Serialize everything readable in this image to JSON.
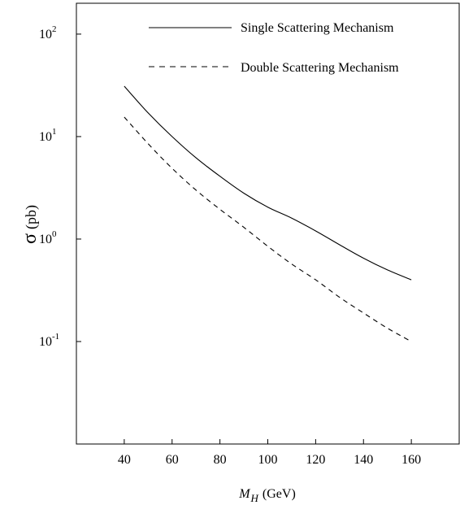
{
  "chart_data": {
    "type": "line",
    "xlabel": {
      "main": "M",
      "subscript": "H",
      "unit": "(GeV)"
    },
    "ylabel": {
      "symbol": "σ",
      "unit": "(pb)"
    },
    "yscale": "log",
    "xlim": [
      20,
      180
    ],
    "ylim": [
      0.01,
      200
    ],
    "grid": false,
    "legend_position": "top-right",
    "x_ticks": [
      40,
      60,
      80,
      100,
      120,
      140,
      160
    ],
    "x_tick_labels": [
      "40",
      "60",
      "80",
      "100",
      "120",
      "140",
      "160"
    ],
    "y_ticks": [
      {
        "value": 0.1,
        "base": "10",
        "exp": "-1"
      },
      {
        "value": 1,
        "base": "10",
        "exp": "0"
      },
      {
        "value": 10,
        "base": "10",
        "exp": "1"
      },
      {
        "value": 100,
        "base": "10",
        "exp": "2"
      }
    ],
    "series": [
      {
        "name": "Single Scattering Mechanism",
        "style": "solid",
        "x": [
          40,
          50,
          60,
          70,
          80,
          90,
          100,
          110,
          120,
          130,
          140,
          150,
          160
        ],
        "y": [
          31,
          17,
          10,
          6.2,
          4.1,
          2.8,
          2.05,
          1.6,
          1.2,
          0.88,
          0.65,
          0.5,
          0.4
        ]
      },
      {
        "name": "Double Scattering Mechanism",
        "style": "dashed",
        "x": [
          40,
          50,
          60,
          70,
          80,
          90,
          100,
          110,
          120,
          130,
          140,
          150,
          160
        ],
        "y": [
          15.5,
          8.5,
          4.9,
          3.0,
          1.95,
          1.3,
          0.85,
          0.57,
          0.4,
          0.27,
          0.19,
          0.135,
          0.1
        ]
      }
    ]
  }
}
